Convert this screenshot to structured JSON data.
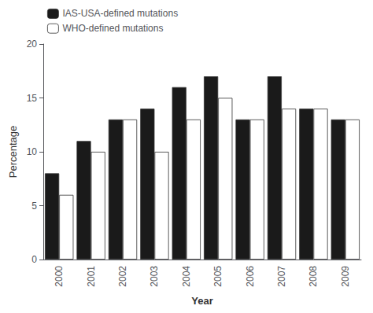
{
  "chart_data": {
    "type": "bar",
    "xlabel": "Year",
    "ylabel": "Percentage",
    "categories": [
      "2000",
      "2001",
      "2002",
      "2003",
      "2004",
      "2005",
      "2006",
      "2007",
      "2008",
      "2009"
    ],
    "series": [
      {
        "name": "IAS-USA-defined mutations",
        "color": "#1a1a1a",
        "values": [
          8,
          11,
          13,
          14,
          16,
          17,
          13,
          17,
          14,
          13
        ]
      },
      {
        "name": "WHO-defined mutations",
        "color": "#ffffff",
        "values": [
          6,
          10,
          13,
          10,
          13,
          15,
          13,
          14,
          14,
          13
        ]
      }
    ],
    "ylim": [
      0,
      20
    ],
    "yticks": [
      0,
      5,
      10,
      15,
      20
    ],
    "grid": false,
    "legend": "upper left"
  }
}
